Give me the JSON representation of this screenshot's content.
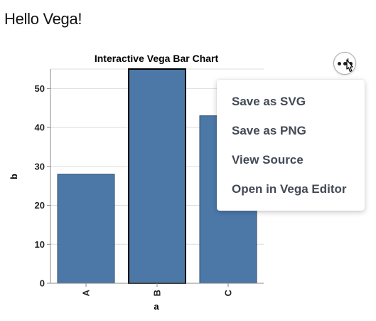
{
  "page": {
    "title": "Hello Vega!"
  },
  "chart_data": {
    "type": "bar",
    "title": "Interactive Vega Bar Chart",
    "xlabel": "a",
    "ylabel": "b",
    "categories": [
      "A",
      "B",
      "C"
    ],
    "values": [
      28,
      55,
      43
    ],
    "ylim": [
      0,
      55
    ],
    "yticks": [
      0,
      10,
      20,
      30,
      40,
      50
    ],
    "highlighted_category": "B",
    "grid": true,
    "bar_color": "#4c78a8",
    "highlight_stroke": "#000000"
  },
  "actions_menu": {
    "items": [
      "Save as SVG",
      "Save as PNG",
      "View Source",
      "Open in Vega Editor"
    ]
  }
}
